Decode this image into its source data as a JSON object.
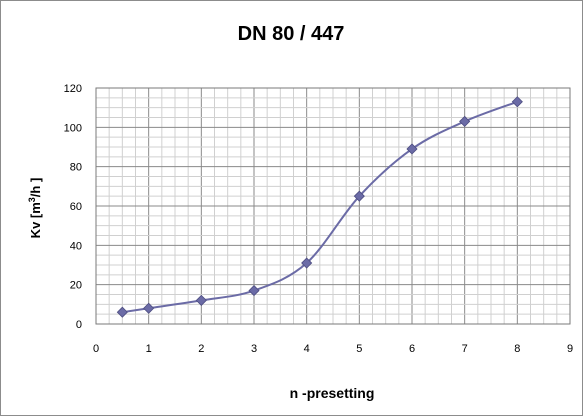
{
  "chart_data": {
    "type": "line",
    "title": "DN 80 / 447",
    "xlabel": "n -presetting",
    "ylabel": {
      "prefix": "Kv  [m",
      "sup": "3",
      "suffix": "/h ]"
    },
    "xlim": [
      0,
      9
    ],
    "ylim": [
      0,
      120
    ],
    "x_ticks": [
      0,
      1,
      2,
      3,
      4,
      5,
      6,
      7,
      8,
      9
    ],
    "y_ticks": [
      0,
      20,
      40,
      60,
      80,
      100,
      120
    ],
    "grid": true,
    "legend": "none",
    "series": [
      {
        "color": "#6b6ba6",
        "x": [
          0.5,
          1,
          2,
          3,
          4,
          5,
          6,
          7,
          8
        ],
        "y": [
          6,
          8,
          12,
          17,
          31,
          65,
          89,
          103,
          113
        ]
      }
    ]
  }
}
